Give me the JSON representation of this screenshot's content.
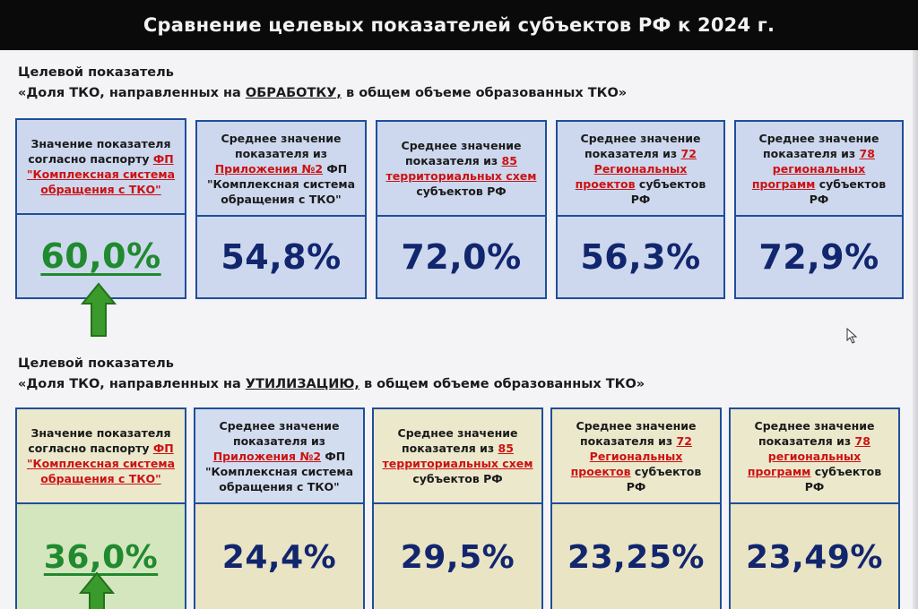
{
  "title": "Сравнение целевых показателей субъектов РФ к 2024 г.",
  "sections": [
    {
      "label": "Целевой показатель",
      "desc_pre": "«Доля ТКО, направленных на ",
      "desc_key": "ОБРАБОТКУ,",
      "desc_post": " в общем объеме образованных ТКО»",
      "cards": [
        {
          "pre": "Значение показателя согласно паспорту ",
          "red": "ФП \"Комплексная система обращения с ТКО\"",
          "post": "",
          "value": "60,0%"
        },
        {
          "pre": "Среднее значение показателя из ",
          "red": "Приложения №2",
          "post": " ФП \"Комплексная система обращения с ТКО\"",
          "value": "54,8%"
        },
        {
          "pre": "Среднее значение показателя из ",
          "red": "85 территориальных схем",
          "post": " субъектов РФ",
          "value": "72,0%"
        },
        {
          "pre": "Среднее значение показателя из ",
          "red": "72 Региональных проектов",
          "post": " субъектов РФ",
          "value": "56,3%"
        },
        {
          "pre": "Среднее значение показателя из ",
          "red": "78 региональных программ",
          "post": " субъектов РФ",
          "value": "72,9%"
        }
      ]
    },
    {
      "label": "Целевой показатель",
      "desc_pre": "«Доля ТКО, направленных на ",
      "desc_key": "УТИЛИЗАЦИЮ,",
      "desc_post": " в общем объеме образованных ТКО»",
      "cards": [
        {
          "pre": "Значение показателя согласно паспорту ",
          "red": "ФП \"Комплексная система обращения с ТКО\"",
          "post": "",
          "value": "36,0%"
        },
        {
          "pre": "Среднее значение показателя из ",
          "red": "Приложения №2",
          "post": " ФП \"Комплексная система обращения с ТКО\"",
          "value": "24,4%"
        },
        {
          "pre": "Среднее значение показателя из ",
          "red": "85 территориальных схем",
          "post": " субъектов РФ",
          "value": "29,5%"
        },
        {
          "pre": "Среднее значение показателя из ",
          "red": "72 Региональных проектов",
          "post": " субъектов РФ",
          "value": "23,25%"
        },
        {
          "pre": "Среднее значение показателя из ",
          "red": "78 региональных программ",
          "post": " субъектов РФ",
          "value": "23,49%"
        }
      ]
    }
  ],
  "colors": {
    "title_bg": "#0a0a0a",
    "border_blue": "#1f4e9b",
    "value_blue": "#12266e",
    "value_green": "#1f8a2e",
    "highlight_red": "#cc1212",
    "arrow_green": "#3a9a2c"
  },
  "icons": {
    "arrow": "up-arrow-icon",
    "cursor": "mouse-pointer-icon"
  }
}
